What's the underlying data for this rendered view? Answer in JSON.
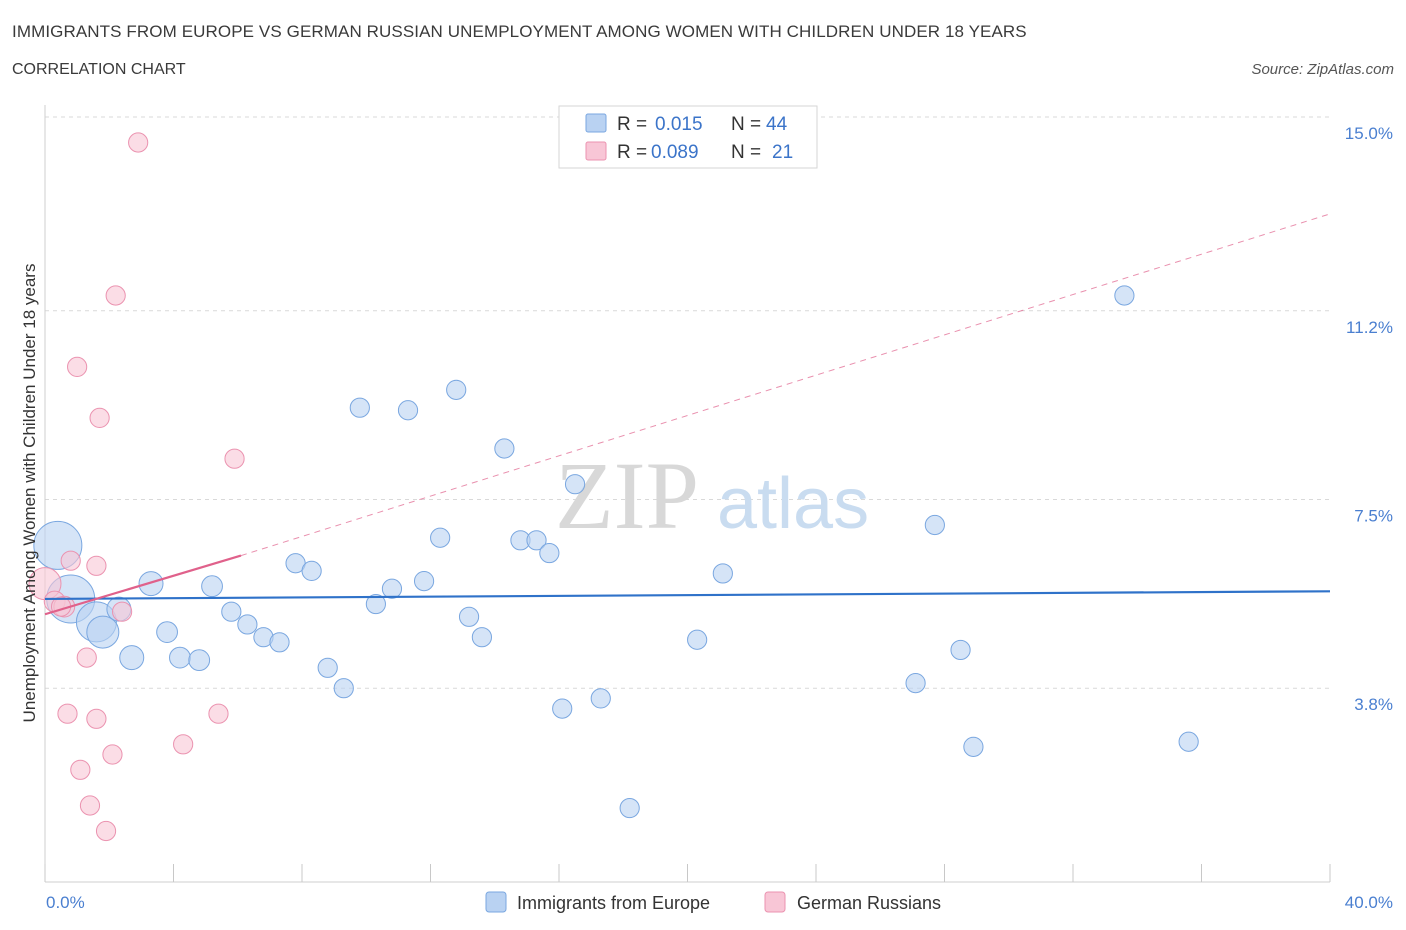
{
  "header": {
    "title": "IMMIGRANTS FROM EUROPE VS GERMAN RUSSIAN UNEMPLOYMENT AMONG WOMEN WITH CHILDREN UNDER 18 YEARS",
    "subtitle": "CORRELATION CHART",
    "source": "Source: ZipAtlas.com"
  },
  "watermark": {
    "zip": "ZIP",
    "atlas": "atlas"
  },
  "legend": {
    "rows": [
      {
        "r_label": "R =",
        "r_value": "0.015",
        "n_label": "N =",
        "n_value": "44"
      },
      {
        "r_label": "R =",
        "r_value": "0.089",
        "n_label": "N =",
        "n_value": "21"
      }
    ]
  },
  "colors": {
    "blue_fill": "#b9d2f2",
    "blue_stroke": "#7aa7e0",
    "blue_line": "#2f72c9",
    "pink_fill": "#f8c6d6",
    "pink_stroke": "#eb93b0",
    "pink_line": "#e0618b",
    "grid": "#d9d9d9",
    "tick_label": "#4a7fd0"
  },
  "chart_data": {
    "type": "scatter",
    "title": "IMMIGRANTS FROM EUROPE VS GERMAN RUSSIAN UNEMPLOYMENT AMONG WOMEN WITH CHILDREN UNDER 18 YEARS",
    "xlabel": "",
    "ylabel": "Unemployment Among Women with Children Under 18 years",
    "xlim": [
      0,
      40
    ],
    "ylim": [
      0,
      15
    ],
    "x_tick_labels": [
      "0.0%",
      "40.0%"
    ],
    "y_ticks": [
      3.8,
      7.5,
      11.2,
      15.0
    ],
    "y_tick_labels": [
      "3.8%",
      "7.5%",
      "11.2%",
      "15.0%"
    ],
    "grid": true,
    "legend_position": "top-center",
    "series": [
      {
        "name": "Immigrants from Europe",
        "color": "blue",
        "R": 0.015,
        "N": 44,
        "trend": {
          "x": [
            0,
            40
          ],
          "y": [
            5.55,
            5.7
          ],
          "dashed_extension": false
        },
        "points": [
          {
            "x": 0.4,
            "y": 6.6,
            "s": 3
          },
          {
            "x": 0.8,
            "y": 5.55,
            "s": 3
          },
          {
            "x": 1.6,
            "y": 5.1,
            "s": 2.5
          },
          {
            "x": 1.8,
            "y": 4.9,
            "s": 2
          },
          {
            "x": 2.3,
            "y": 5.35,
            "s": 1.5
          },
          {
            "x": 2.7,
            "y": 4.4,
            "s": 1.5
          },
          {
            "x": 3.3,
            "y": 5.85,
            "s": 1.5
          },
          {
            "x": 3.8,
            "y": 4.9,
            "s": 1.3
          },
          {
            "x": 4.2,
            "y": 4.4,
            "s": 1.3
          },
          {
            "x": 4.8,
            "y": 4.35,
            "s": 1.3
          },
          {
            "x": 5.2,
            "y": 5.8,
            "s": 1.3
          },
          {
            "x": 5.8,
            "y": 5.3,
            "s": 1.2
          },
          {
            "x": 6.3,
            "y": 5.05,
            "s": 1.2
          },
          {
            "x": 6.8,
            "y": 4.8,
            "s": 1.2
          },
          {
            "x": 7.3,
            "y": 4.7,
            "s": 1.2
          },
          {
            "x": 7.8,
            "y": 6.25,
            "s": 1.2
          },
          {
            "x": 8.3,
            "y": 6.1,
            "s": 1.2
          },
          {
            "x": 8.8,
            "y": 4.2,
            "s": 1.2
          },
          {
            "x": 9.3,
            "y": 3.8,
            "s": 1.2
          },
          {
            "x": 9.8,
            "y": 9.3,
            "s": 1.2
          },
          {
            "x": 10.3,
            "y": 5.45,
            "s": 1.2
          },
          {
            "x": 10.8,
            "y": 5.75,
            "s": 1.2
          },
          {
            "x": 11.3,
            "y": 9.25,
            "s": 1.2
          },
          {
            "x": 11.8,
            "y": 5.9,
            "s": 1.2
          },
          {
            "x": 12.3,
            "y": 6.75,
            "s": 1.2
          },
          {
            "x": 12.8,
            "y": 9.65,
            "s": 1.2
          },
          {
            "x": 13.2,
            "y": 5.2,
            "s": 1.2
          },
          {
            "x": 13.6,
            "y": 4.8,
            "s": 1.2
          },
          {
            "x": 14.3,
            "y": 8.5,
            "s": 1.2
          },
          {
            "x": 14.8,
            "y": 6.7,
            "s": 1.2
          },
          {
            "x": 15.3,
            "y": 6.7,
            "s": 1.2
          },
          {
            "x": 15.7,
            "y": 6.45,
            "s": 1.2
          },
          {
            "x": 16.1,
            "y": 3.4,
            "s": 1.2
          },
          {
            "x": 16.5,
            "y": 7.8,
            "s": 1.2
          },
          {
            "x": 17.3,
            "y": 3.6,
            "s": 1.2
          },
          {
            "x": 18.2,
            "y": 1.45,
            "s": 1.2
          },
          {
            "x": 20.3,
            "y": 4.75,
            "s": 1.2
          },
          {
            "x": 21.1,
            "y": 6.05,
            "s": 1.2
          },
          {
            "x": 27.1,
            "y": 3.9,
            "s": 1.2
          },
          {
            "x": 27.7,
            "y": 7.0,
            "s": 1.2
          },
          {
            "x": 28.5,
            "y": 4.55,
            "s": 1.2
          },
          {
            "x": 28.9,
            "y": 2.65,
            "s": 1.2
          },
          {
            "x": 33.6,
            "y": 11.5,
            "s": 1.2
          },
          {
            "x": 35.6,
            "y": 2.75,
            "s": 1.2
          }
        ]
      },
      {
        "name": "German Russians",
        "color": "pink",
        "R": 0.089,
        "N": 21,
        "trend": {
          "x": [
            0,
            6.1
          ],
          "y": [
            5.25,
            6.4
          ],
          "dashed_extension": {
            "x": [
              6.1,
              40
            ],
            "y": [
              6.4,
              13.1
            ]
          }
        },
        "points": [
          {
            "x": 0.0,
            "y": 5.85,
            "s": 2
          },
          {
            "x": 0.3,
            "y": 5.5,
            "s": 1.3
          },
          {
            "x": 0.6,
            "y": 5.4,
            "s": 1.3
          },
          {
            "x": 0.7,
            "y": 3.3,
            "s": 1.2
          },
          {
            "x": 0.8,
            "y": 6.3,
            "s": 1.2
          },
          {
            "x": 1.0,
            "y": 10.1,
            "s": 1.2
          },
          {
            "x": 1.1,
            "y": 2.2,
            "s": 1.2
          },
          {
            "x": 1.3,
            "y": 4.4,
            "s": 1.2
          },
          {
            "x": 1.4,
            "y": 1.5,
            "s": 1.2
          },
          {
            "x": 1.6,
            "y": 3.2,
            "s": 1.2
          },
          {
            "x": 1.6,
            "y": 6.2,
            "s": 1.2
          },
          {
            "x": 1.7,
            "y": 9.1,
            "s": 1.2
          },
          {
            "x": 1.9,
            "y": 1.0,
            "s": 1.2
          },
          {
            "x": 2.1,
            "y": 2.5,
            "s": 1.2
          },
          {
            "x": 2.2,
            "y": 11.5,
            "s": 1.2
          },
          {
            "x": 2.4,
            "y": 5.3,
            "s": 1.2
          },
          {
            "x": 2.9,
            "y": 14.5,
            "s": 1.2
          },
          {
            "x": 4.3,
            "y": 2.7,
            "s": 1.2
          },
          {
            "x": 5.4,
            "y": 3.3,
            "s": 1.2
          },
          {
            "x": 5.9,
            "y": 8.3,
            "s": 1.2
          },
          {
            "x": 0.5,
            "y": 5.4,
            "s": 1.2
          }
        ]
      }
    ]
  }
}
